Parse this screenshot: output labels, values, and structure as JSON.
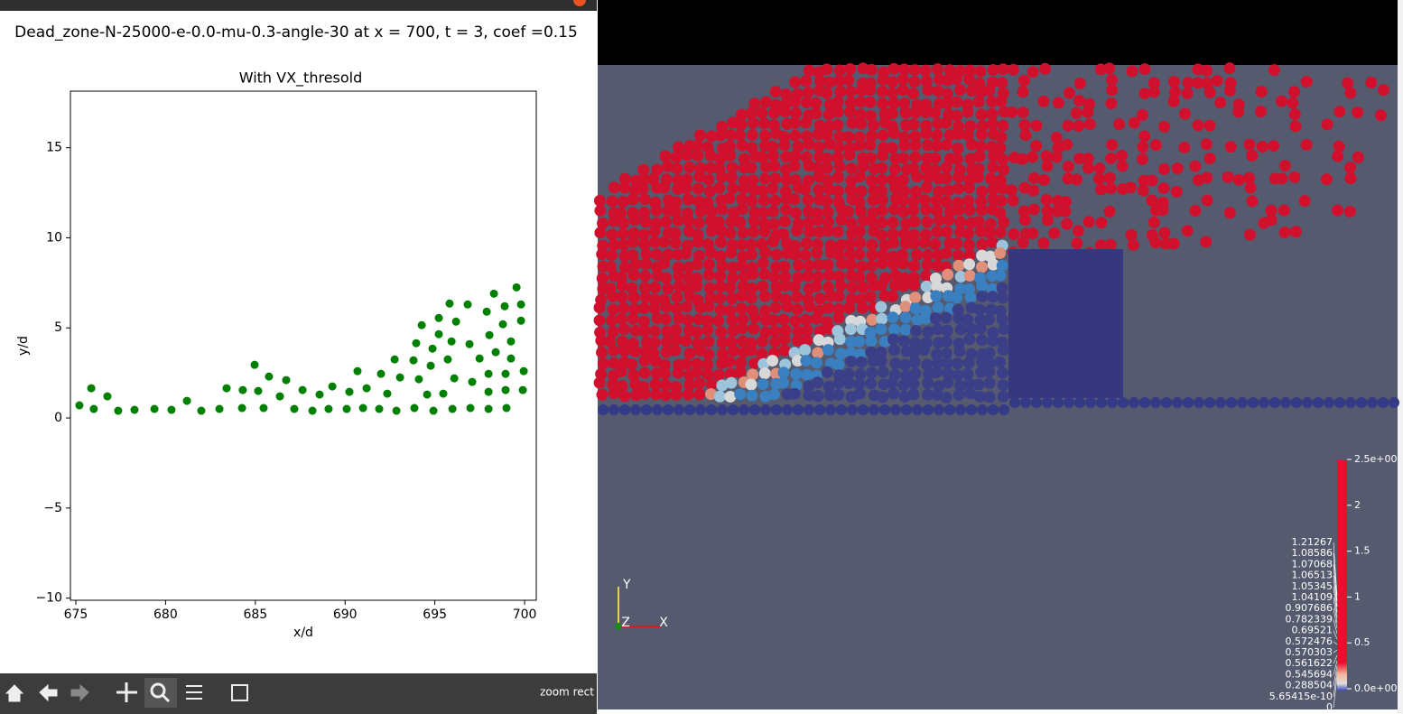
{
  "window": {
    "suptitle": "Dead_zone-N-25000-e-0.0-mu-0.3-angle-30 at x = 700, t = 3, coef =0.15",
    "status": "zoom rect"
  },
  "chart_data": {
    "type": "scatter",
    "title": "With VX_thresold",
    "x_label": "x/d",
    "y_label": "y/d",
    "xlim": [
      674.7,
      700.65
    ],
    "ylim": [
      -10.12,
      18.14
    ],
    "xticks": [
      675,
      680,
      685,
      690,
      695,
      700
    ],
    "yticks": [
      {
        "value": -10,
        "label": "−10"
      },
      {
        "value": -5,
        "label": "−5"
      },
      0,
      5,
      10,
      15
    ],
    "grid": false,
    "series": [
      {
        "color": "#008000",
        "x": [
          675.2,
          675.86,
          676.0,
          676.76,
          677.36,
          678.27,
          679.38,
          680.33,
          681.19,
          681.99,
          683.0,
          683.4,
          684.26,
          684.3,
          684.96,
          685.16,
          685.46,
          685.76,
          686.37,
          686.72,
          687.17,
          687.63,
          688.18,
          688.58,
          689.08,
          689.29,
          690.09,
          690.24,
          690.69,
          691.0,
          691.2,
          691.9,
          692.0,
          692.35,
          692.76,
          692.86,
          693.06,
          693.81,
          693.86,
          693.96,
          694.11,
          694.27,
          694.57,
          694.77,
          694.87,
          694.92,
          695.22,
          695.22,
          695.47,
          695.72,
          695.82,
          695.93,
          695.98,
          696.08,
          696.18,
          696.83,
          696.93,
          696.98,
          697.08,
          697.49,
          697.89,
          697.99,
          697.99,
          697.99,
          698.04,
          698.29,
          698.39,
          698.79,
          698.89,
          698.94,
          698.94,
          698.99,
          699.24,
          699.24,
          699.55,
          699.8,
          699.8,
          699.9,
          699.95
        ],
        "values": [
          0.7,
          1.65,
          0.5,
          1.2,
          0.4,
          0.45,
          0.5,
          0.45,
          0.95,
          0.4,
          0.5,
          1.65,
          0.55,
          1.55,
          2.95,
          1.5,
          0.55,
          2.3,
          1.2,
          2.1,
          0.5,
          1.55,
          0.4,
          1.3,
          0.5,
          1.75,
          0.5,
          1.45,
          2.6,
          0.55,
          1.65,
          0.5,
          2.45,
          1.35,
          3.25,
          0.4,
          2.25,
          3.2,
          0.55,
          4.15,
          2.15,
          5.15,
          1.3,
          2.9,
          3.85,
          0.4,
          4.65,
          5.55,
          1.35,
          3.25,
          6.35,
          4.25,
          0.5,
          2.2,
          5.35,
          6.3,
          4.1,
          0.55,
          2.0,
          3.3,
          5.9,
          1.45,
          2.45,
          0.5,
          4.6,
          6.9,
          3.65,
          5.2,
          6.2,
          2.45,
          1.55,
          0.55,
          4.25,
          3.3,
          7.25,
          6.3,
          5.4,
          1.55,
          2.6
        ]
      }
    ]
  },
  "viewer": {
    "axes": [
      "Y",
      "Z",
      "X"
    ],
    "colorbar_ticks": [
      "2.5e+00",
      "2",
      "1.5",
      "1",
      "0.5",
      "0.0e+00"
    ],
    "colorbar_annotations": [
      "1.21267",
      "1.08586",
      "1.07068",
      "1.06513",
      "1.05345",
      "1.04109",
      "0.907686",
      "0.782339",
      "0.69521",
      "0.572476",
      "0.570303",
      "0.561622",
      "0.545694",
      "0.288504",
      "5.65415e-10",
      "0"
    ]
  }
}
